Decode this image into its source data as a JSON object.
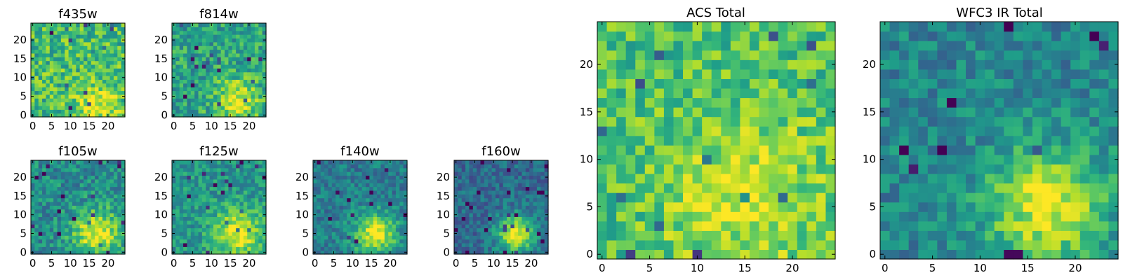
{
  "chart_data": [
    {
      "type": "heatmap",
      "title": "f435w",
      "xticks": [
        "0",
        "5",
        "10",
        "15",
        "20"
      ],
      "yticks": [
        "0",
        "5",
        "10",
        "15",
        "20"
      ],
      "xlim": [
        -0.5,
        24.5
      ],
      "ylim": [
        -0.5,
        24.5
      ],
      "colormap": "viridis",
      "grid": false,
      "size": 25,
      "blob": {
        "cx": 17,
        "cy": 3,
        "amp": 0.3,
        "sigma": 4
      },
      "base": 0.68,
      "noise": 0.22,
      "seed": 11
    },
    {
      "type": "heatmap",
      "title": "f814w",
      "xticks": [
        "0",
        "5",
        "10",
        "15",
        "20"
      ],
      "yticks": [
        "0",
        "5",
        "10",
        "15",
        "20"
      ],
      "xlim": [
        -0.5,
        24.5
      ],
      "ylim": [
        -0.5,
        24.5
      ],
      "colormap": "viridis",
      "grid": false,
      "size": 25,
      "blob": {
        "cx": 17,
        "cy": 4,
        "amp": 0.4,
        "sigma": 4
      },
      "base": 0.58,
      "noise": 0.2,
      "seed": 23
    },
    {
      "type": "heatmap",
      "title": "f105w",
      "xticks": [
        "0",
        "5",
        "10",
        "15",
        "20"
      ],
      "yticks": [
        "0",
        "5",
        "10",
        "15",
        "20"
      ],
      "xlim": [
        -0.5,
        24.5
      ],
      "ylim": [
        -0.5,
        24.5
      ],
      "colormap": "viridis",
      "grid": false,
      "size": 25,
      "blob": {
        "cx": 17,
        "cy": 5,
        "amp": 0.5,
        "sigma": 4.5
      },
      "base": 0.48,
      "noise": 0.18,
      "seed": 37
    },
    {
      "type": "heatmap",
      "title": "f125w",
      "xticks": [
        "0",
        "5",
        "10",
        "15",
        "20"
      ],
      "yticks": [
        "0",
        "5",
        "10",
        "15",
        "20"
      ],
      "xlim": [
        -0.5,
        24.5
      ],
      "ylim": [
        -0.5,
        24.5
      ],
      "colormap": "viridis",
      "grid": false,
      "size": 25,
      "blob": {
        "cx": 17,
        "cy": 5,
        "amp": 0.48,
        "sigma": 4.5
      },
      "base": 0.52,
      "noise": 0.16,
      "seed": 41
    },
    {
      "type": "heatmap",
      "title": "f140w",
      "xticks": [
        "0",
        "5",
        "10",
        "15",
        "20"
      ],
      "yticks": [
        "0",
        "5",
        "10",
        "15",
        "20"
      ],
      "xlim": [
        -0.5,
        24.5
      ],
      "ylim": [
        -0.5,
        24.5
      ],
      "colormap": "viridis",
      "grid": false,
      "size": 25,
      "blob": {
        "cx": 16,
        "cy": 5,
        "amp": 0.55,
        "sigma": 4
      },
      "base": 0.42,
      "noise": 0.15,
      "seed": 53
    },
    {
      "type": "heatmap",
      "title": "f160w",
      "xticks": [
        "0",
        "5",
        "10",
        "15",
        "20"
      ],
      "yticks": [
        "0",
        "5",
        "10",
        "15",
        "20"
      ],
      "xlim": [
        -0.5,
        24.5
      ],
      "ylim": [
        -0.5,
        24.5
      ],
      "colormap": "viridis",
      "grid": false,
      "size": 25,
      "blob": {
        "cx": 16,
        "cy": 5,
        "amp": 0.62,
        "sigma": 3.5
      },
      "base": 0.35,
      "noise": 0.14,
      "seed": 67
    },
    {
      "type": "heatmap",
      "title": "ACS Total",
      "xticks": [
        "0",
        "5",
        "10",
        "15",
        "20"
      ],
      "yticks": [
        "0",
        "5",
        "10",
        "15",
        "20"
      ],
      "xlim": [
        -0.5,
        24.5
      ],
      "ylim": [
        -0.5,
        24.5
      ],
      "colormap": "viridis",
      "grid": false,
      "size": 25,
      "blob": {
        "cx": 15,
        "cy": 6,
        "amp": 0.22,
        "sigma": 6
      },
      "base": 0.7,
      "noise": 0.18,
      "seed": 79
    },
    {
      "type": "heatmap",
      "title": "WFC3 IR Total",
      "xticks": [
        "0",
        "5",
        "10",
        "15",
        "20"
      ],
      "yticks": [
        "0",
        "5",
        "10",
        "15",
        "20"
      ],
      "xlim": [
        -0.5,
        24.5
      ],
      "ylim": [
        -0.5,
        24.5
      ],
      "colormap": "viridis",
      "grid": false,
      "size": 25,
      "blob": {
        "cx": 17,
        "cy": 5,
        "amp": 0.5,
        "sigma": 4.5
      },
      "base": 0.45,
      "noise": 0.15,
      "seed": 97
    }
  ]
}
